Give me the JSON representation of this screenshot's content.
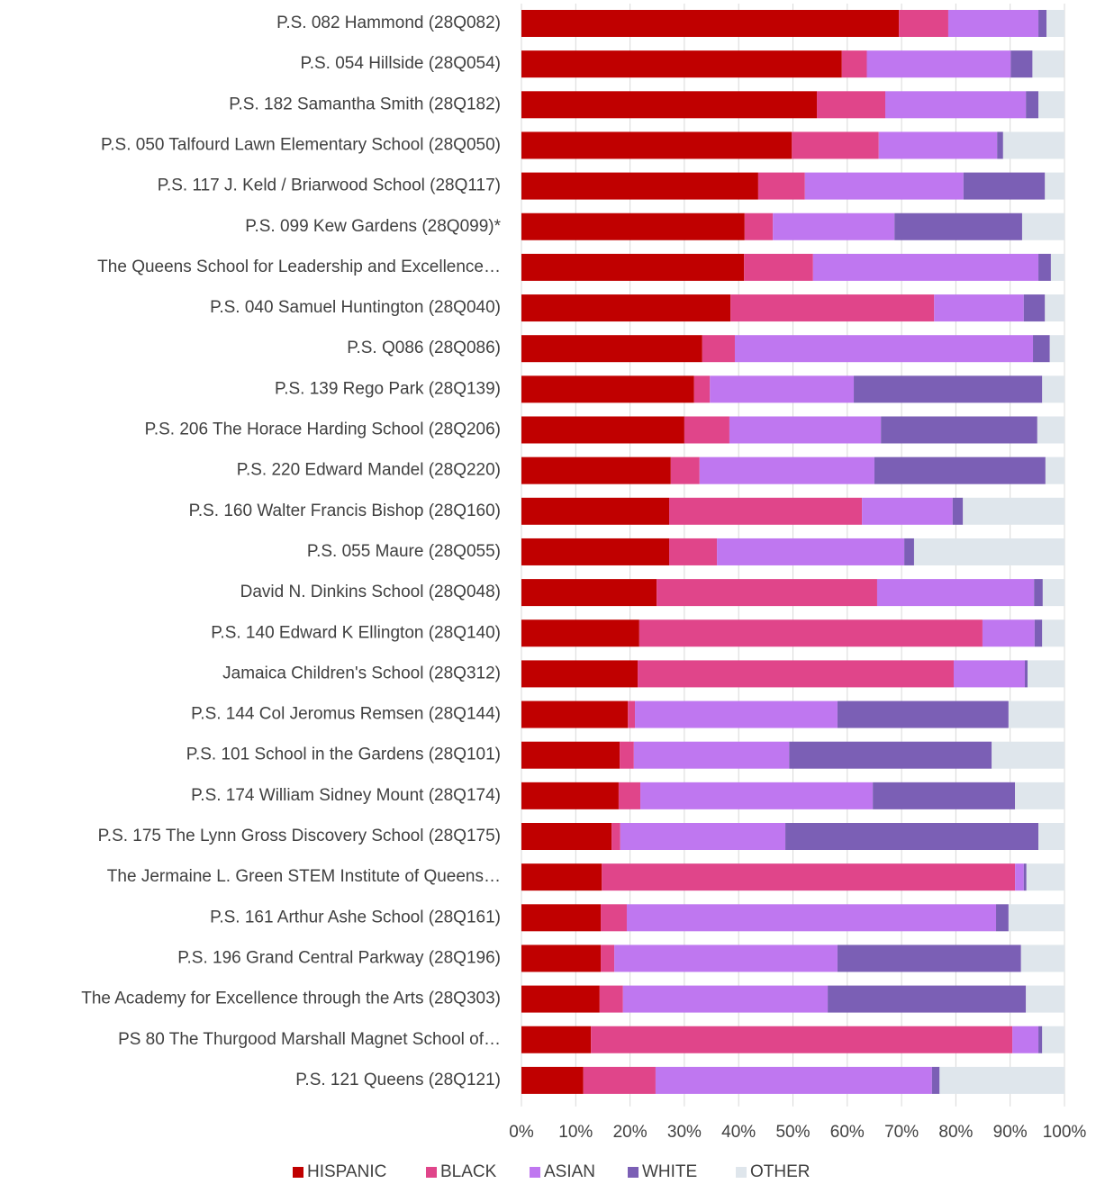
{
  "chart_data": {
    "type": "stacked-bar-horizontal",
    "categories": [
      "P.S. 082 Hammond (28Q082)",
      "P.S. 054 Hillside (28Q054)",
      "P.S. 182 Samantha Smith (28Q182)",
      "P.S. 050 Talfourd Lawn Elementary School (28Q050)",
      "P.S. 117 J. Keld / Briarwood School (28Q117)",
      "P.S. 099 Kew Gardens (28Q099)*",
      "The Queens School for Leadership and Excellence…",
      "P.S. 040 Samuel Huntington (28Q040)",
      "P.S. Q086 (28Q086)",
      "P.S. 139 Rego Park (28Q139)",
      "P.S. 206 The Horace Harding School (28Q206)",
      "P.S. 220 Edward Mandel (28Q220)",
      "P.S. 160 Walter Francis Bishop (28Q160)",
      "P.S. 055 Maure (28Q055)",
      "David N. Dinkins School (28Q048)",
      "P.S. 140 Edward K Ellington (28Q140)",
      "Jamaica Children's School (28Q312)",
      "P.S. 144 Col Jeromus Remsen (28Q144)",
      "P.S. 101 School in the Gardens (28Q101)",
      "P.S. 174 William Sidney Mount (28Q174)",
      "P.S. 175 The Lynn Gross Discovery School (28Q175)",
      "The Jermaine L. Green STEM Institute of Queens…",
      "P.S. 161 Arthur Ashe School (28Q161)",
      "P.S. 196 Grand Central Parkway (28Q196)",
      "The Academy for Excellence through the Arts (28Q303)",
      "PS 80  The Thurgood Marshall Magnet School of…",
      "P.S. 121 Queens (28Q121)"
    ],
    "series": [
      {
        "name": "HISPANIC",
        "color": "#c00000",
        "values": [
          69.5,
          59.0,
          54.4,
          49.8,
          43.6,
          41.1,
          41.0,
          38.5,
          33.3,
          31.8,
          30.0,
          27.5,
          27.2,
          27.2,
          24.9,
          21.7,
          21.4,
          19.6,
          18.1,
          17.9,
          16.6,
          14.8,
          14.6,
          14.6,
          14.4,
          12.8,
          11.4
        ]
      },
      {
        "name": "BLACK",
        "color": "#e0458a",
        "values": [
          9.1,
          4.6,
          12.6,
          16.0,
          8.6,
          5.2,
          12.7,
          37.5,
          6.0,
          2.9,
          8.3,
          5.3,
          35.5,
          8.8,
          40.6,
          63.2,
          58.2,
          1.3,
          2.6,
          4.0,
          1.6,
          76.1,
          4.8,
          2.5,
          4.3,
          77.6,
          13.3
        ]
      },
      {
        "name": "ASIAN",
        "color": "#bf77f0",
        "values": [
          16.6,
          26.5,
          25.9,
          21.8,
          29.2,
          22.4,
          41.5,
          16.5,
          54.9,
          26.5,
          27.9,
          32.2,
          16.7,
          34.5,
          28.9,
          9.6,
          13.1,
          37.3,
          28.6,
          42.8,
          30.4,
          1.6,
          68.0,
          41.1,
          37.7,
          4.8,
          50.9
        ]
      },
      {
        "name": "WHITE",
        "color": "#7b5fb5",
        "values": [
          1.5,
          4.0,
          2.3,
          1.1,
          15.0,
          23.5,
          2.3,
          3.9,
          3.1,
          34.7,
          28.8,
          31.5,
          1.9,
          1.8,
          1.6,
          1.4,
          0.5,
          31.5,
          37.3,
          26.2,
          46.6,
          0.5,
          2.3,
          33.8,
          36.5,
          0.7,
          1.4
        ]
      },
      {
        "name": "OTHER",
        "color": "#dfe6ec",
        "values": [
          3.3,
          5.8,
          4.8,
          11.3,
          3.6,
          7.8,
          2.5,
          3.6,
          2.7,
          4.1,
          5.0,
          3.5,
          18.7,
          27.7,
          4.0,
          4.1,
          6.8,
          10.3,
          13.4,
          9.1,
          4.8,
          7.0,
          10.3,
          8.0,
          7.1,
          4.1,
          23.0
        ]
      }
    ],
    "xlim": [
      0,
      100
    ],
    "xticks": [
      {
        "value": 0,
        "label": "0%"
      },
      {
        "value": 10,
        "label": "10%"
      },
      {
        "value": 20,
        "label": "20%"
      },
      {
        "value": 30,
        "label": "30%"
      },
      {
        "value": 40,
        "label": "40%"
      },
      {
        "value": 50,
        "label": "50%"
      },
      {
        "value": 60,
        "label": "60%"
      },
      {
        "value": 70,
        "label": "70%"
      },
      {
        "value": 80,
        "label": "80%"
      },
      {
        "value": 90,
        "label": "90%"
      },
      {
        "value": 100,
        "label": "100%"
      }
    ],
    "grid": true,
    "legend": "bottom"
  }
}
